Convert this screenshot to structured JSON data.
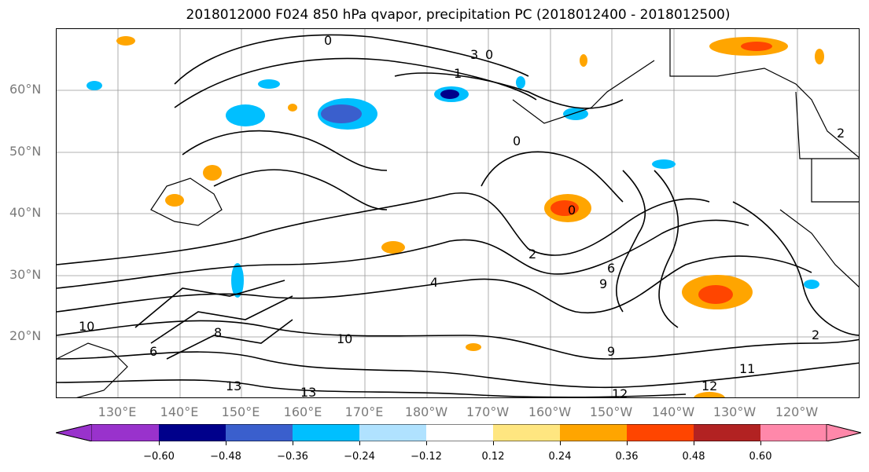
{
  "title": "2018012000 F024 850 hPa qvapor, precipitation PC (2018012400 - 2018012500)",
  "lat_labels": [
    "60°N",
    "50°N",
    "40°N",
    "30°N",
    "20°N"
  ],
  "lon_labels": [
    "130°E",
    "140°E",
    "150°E",
    "160°E",
    "170°E",
    "180°W",
    "170°W",
    "160°W",
    "150°W",
    "140°W",
    "130°W",
    "120°W"
  ],
  "contour_labels": [
    "0",
    "0",
    "0",
    "1",
    "3",
    "2",
    "8",
    "6",
    "9",
    "10",
    "10",
    "13",
    "13",
    "12",
    "12",
    "11",
    "2",
    "4",
    "2",
    "6",
    "9",
    "0"
  ],
  "colorbar": {
    "ticks": [
      "−0.60",
      "−0.48",
      "−0.36",
      "−0.24",
      "−0.12",
      "0.12",
      "0.24",
      "0.36",
      "0.48",
      "0.60"
    ],
    "colors": [
      "#9932cc",
      "#00008b",
      "#3a5fcd",
      "#00bfff",
      "#b0e2ff",
      "#ffffff",
      "#ffe680",
      "#ffa500",
      "#ff4500",
      "#b22222",
      "#ff88aa"
    ]
  }
}
